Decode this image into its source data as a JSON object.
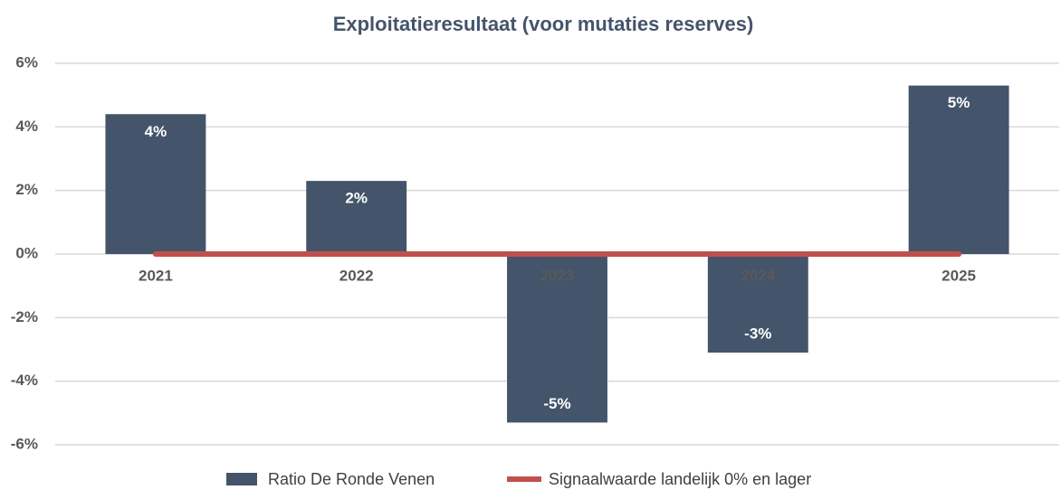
{
  "chart_data": {
    "type": "bar",
    "title": "Exploitatieresultaat (voor mutaties reserves)",
    "categories": [
      "2021",
      "2022",
      "2023",
      "2024",
      "2025"
    ],
    "series": [
      {
        "name": "Ratio De Ronde Venen",
        "type": "bar",
        "color": "#44546a",
        "values": [
          4.4,
          2.3,
          -5.3,
          -3.1,
          5.3
        ],
        "value_labels": [
          "4%",
          "2%",
          "-5%",
          "-3%",
          "5%"
        ]
      },
      {
        "name": "Signaalwaarde landelijk 0% en lager",
        "type": "line",
        "color": "#c0504d",
        "values": [
          0,
          0,
          0,
          0,
          0
        ]
      }
    ],
    "ylim": [
      -6,
      6
    ],
    "yticks": [
      {
        "value": -6,
        "label": "-6%"
      },
      {
        "value": -4,
        "label": "-4%"
      },
      {
        "value": -2,
        "label": "-2%"
      },
      {
        "value": 0,
        "label": "0%"
      },
      {
        "value": 2,
        "label": "2%"
      },
      {
        "value": 4,
        "label": "4%"
      },
      {
        "value": 6,
        "label": "6%"
      }
    ],
    "grid": true,
    "legend": "bottom"
  }
}
